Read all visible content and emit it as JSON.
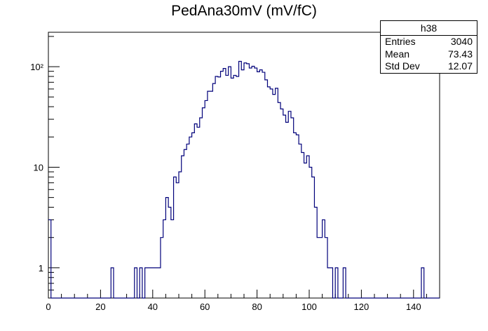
{
  "chart_data": {
    "type": "histogram",
    "title": "PedAna30mV (mV/fC)",
    "xlabel": "",
    "ylabel": "",
    "xlim": [
      0,
      150
    ],
    "ylim": [
      0.5,
      220
    ],
    "y_scale": "log",
    "bin_width": 1,
    "x_ticks": [
      0,
      20,
      40,
      60,
      80,
      100,
      120,
      140
    ],
    "y_ticks": [
      {
        "value": 1,
        "label": "1"
      },
      {
        "value": 10,
        "label": "10"
      },
      {
        "value": 100,
        "label": "10²"
      }
    ],
    "bins": [
      [
        0,
        3
      ],
      [
        24,
        1
      ],
      [
        33,
        1
      ],
      [
        35,
        1
      ],
      [
        37,
        1
      ],
      [
        38,
        1
      ],
      [
        39,
        1
      ],
      [
        40,
        1
      ],
      [
        41,
        1
      ],
      [
        42,
        1
      ],
      [
        43,
        2
      ],
      [
        44,
        3
      ],
      [
        45,
        5
      ],
      [
        46,
        4
      ],
      [
        47,
        3
      ],
      [
        48,
        8
      ],
      [
        49,
        7
      ],
      [
        50,
        9
      ],
      [
        51,
        13
      ],
      [
        52,
        15
      ],
      [
        53,
        17
      ],
      [
        54,
        20
      ],
      [
        55,
        22
      ],
      [
        56,
        27
      ],
      [
        57,
        25
      ],
      [
        58,
        31
      ],
      [
        59,
        39
      ],
      [
        60,
        46
      ],
      [
        61,
        57
      ],
      [
        62,
        57
      ],
      [
        63,
        68
      ],
      [
        64,
        80
      ],
      [
        65,
        79
      ],
      [
        66,
        90
      ],
      [
        67,
        96
      ],
      [
        68,
        82
      ],
      [
        69,
        100
      ],
      [
        70,
        77
      ],
      [
        71,
        82
      ],
      [
        72,
        80
      ],
      [
        73,
        113
      ],
      [
        74,
        93
      ],
      [
        75,
        109
      ],
      [
        76,
        107
      ],
      [
        77,
        97
      ],
      [
        78,
        101
      ],
      [
        79,
        97
      ],
      [
        80,
        89
      ],
      [
        81,
        93
      ],
      [
        82,
        88
      ],
      [
        83,
        74
      ],
      [
        84,
        63
      ],
      [
        85,
        60
      ],
      [
        86,
        53
      ],
      [
        87,
        61
      ],
      [
        88,
        44
      ],
      [
        89,
        38
      ],
      [
        90,
        33
      ],
      [
        91,
        28
      ],
      [
        92,
        36
      ],
      [
        93,
        31
      ],
      [
        94,
        22
      ],
      [
        95,
        21
      ],
      [
        96,
        17
      ],
      [
        97,
        14
      ],
      [
        98,
        11
      ],
      [
        99,
        13
      ],
      [
        100,
        10
      ],
      [
        101,
        8
      ],
      [
        102,
        4
      ],
      [
        103,
        2
      ],
      [
        104,
        2
      ],
      [
        105,
        3
      ],
      [
        106,
        2
      ],
      [
        107,
        1
      ],
      [
        108,
        1
      ],
      [
        109,
        0
      ],
      [
        110,
        1
      ],
      [
        113,
        1
      ],
      [
        143,
        1
      ]
    ],
    "stats": {
      "name": "h38",
      "entries_label": "Entries",
      "entries": "3040",
      "mean_label": "Mean",
      "mean": "73.43",
      "stddev_label": "Std Dev",
      "stddev": "12.07"
    },
    "line_color": "#00007a"
  }
}
